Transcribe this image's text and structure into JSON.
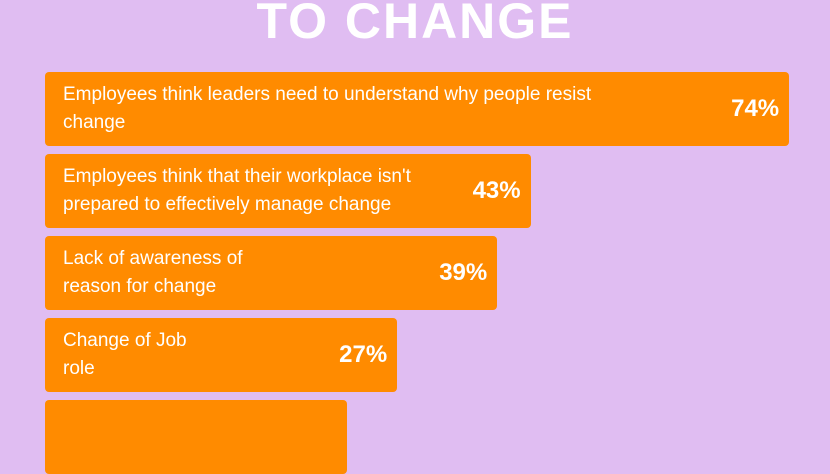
{
  "chart_data": {
    "type": "bar",
    "orientation": "horizontal",
    "title": "TO CHANGE",
    "categories": [
      "Employees think leaders need to understand why people resist change",
      "Employees think that their workplace isn't prepared to effectively manage change",
      "Lack of awareness of reason for change",
      "Change of Job role",
      null
    ],
    "values": [
      74,
      43,
      39,
      27,
      21
    ],
    "value_labels": [
      "74%",
      "43%",
      "39%",
      "27%",
      null
    ],
    "color": "#ff8b00"
  }
}
